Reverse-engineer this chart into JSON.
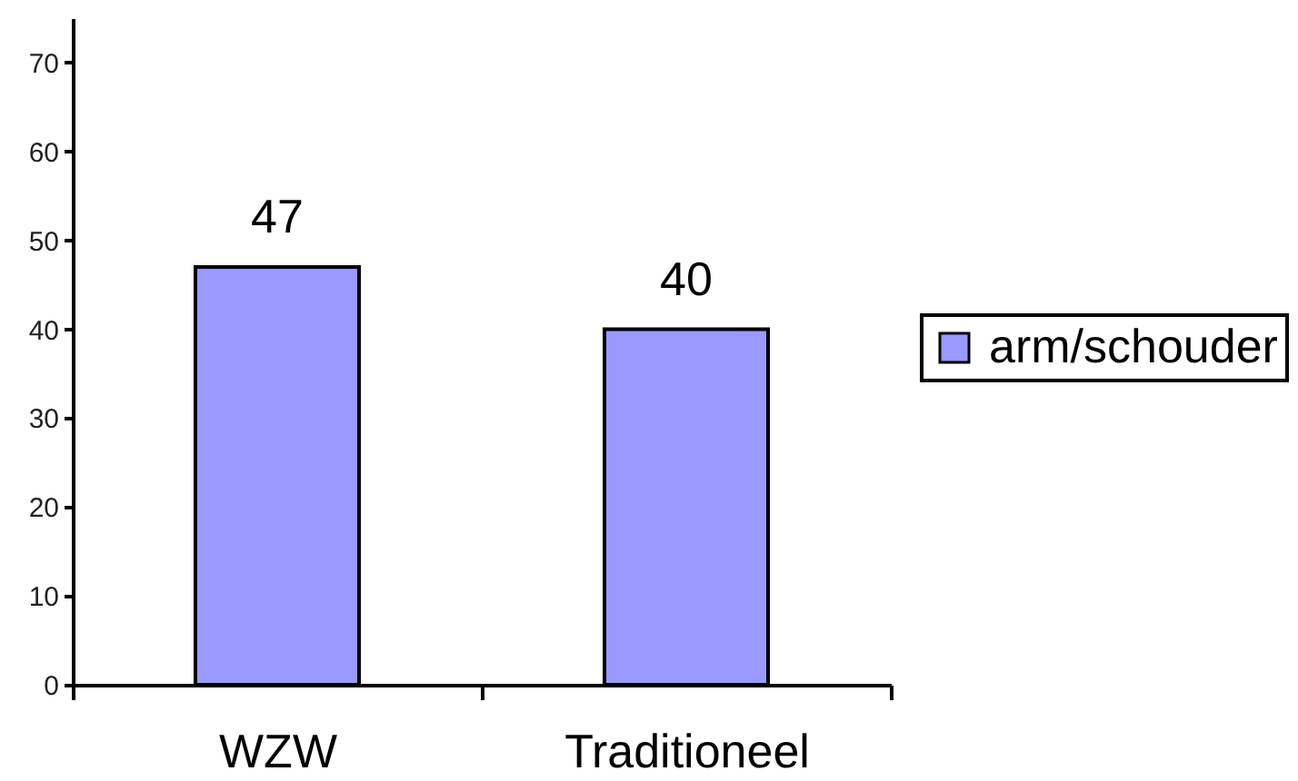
{
  "chart_data": {
    "type": "bar",
    "categories": [
      "WZW",
      "Traditioneel"
    ],
    "series": [
      {
        "name": "arm/schouder",
        "color": "#9999ff",
        "values": [
          47,
          40
        ]
      }
    ],
    "ylim": [
      0,
      75
    ],
    "yticks": [
      0,
      10,
      20,
      30,
      40,
      50,
      60,
      70
    ],
    "legend": "right",
    "data_labels": true
  }
}
